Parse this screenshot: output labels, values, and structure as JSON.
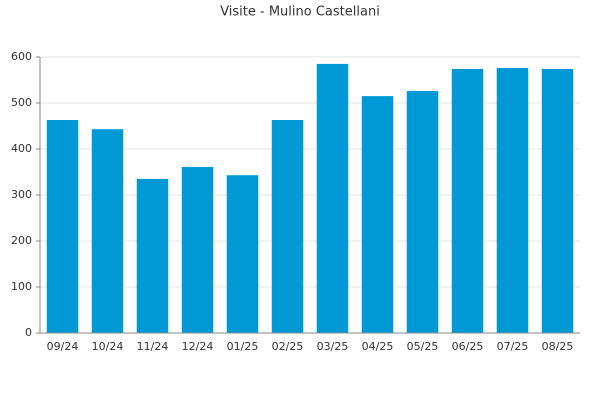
{
  "chart_data": {
    "type": "bar",
    "title": "Visite - Mulino Castellani",
    "categories": [
      "09/24",
      "10/24",
      "11/24",
      "12/24",
      "01/25",
      "02/25",
      "03/25",
      "04/25",
      "05/25",
      "06/25",
      "07/25",
      "08/25"
    ],
    "values": [
      463,
      443,
      335,
      361,
      343,
      463,
      585,
      515,
      526,
      574,
      576,
      574
    ],
    "color": "#0099d6",
    "ylim": [
      0,
      600
    ],
    "yticks": [
      0,
      100,
      200,
      300,
      400,
      500,
      600
    ],
    "grid": true
  }
}
